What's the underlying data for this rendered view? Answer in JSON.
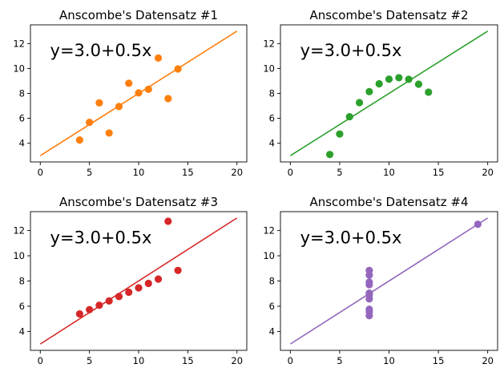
{
  "chart_data": [
    {
      "type": "scatter",
      "title": "Anscombe's Datensatz #1",
      "color": "#ff7f0e",
      "equation": "y=3.0+0.5x",
      "fit": {
        "intercept": 3.0,
        "slope": 0.5,
        "x_start": 0,
        "x_end": 20
      },
      "xlim": [
        -1.0,
        21.0
      ],
      "ylim": [
        2.5,
        13.5
      ],
      "xticks": [
        0,
        5,
        10,
        15,
        20
      ],
      "yticks": [
        4,
        6,
        8,
        10,
        12
      ],
      "x": [
        10,
        8,
        13,
        9,
        11,
        14,
        6,
        4,
        12,
        7,
        5
      ],
      "y": [
        8.04,
        6.95,
        7.58,
        8.81,
        8.33,
        9.96,
        7.24,
        4.26,
        10.84,
        4.82,
        5.68
      ]
    },
    {
      "type": "scatter",
      "title": "Anscombe's Datensatz #2",
      "color": "#2ca02c",
      "equation": "y=3.0+0.5x",
      "fit": {
        "intercept": 3.0,
        "slope": 0.5,
        "x_start": 0,
        "x_end": 20
      },
      "xlim": [
        -1.0,
        21.0
      ],
      "ylim": [
        2.5,
        13.5
      ],
      "xticks": [
        0,
        5,
        10,
        15,
        20
      ],
      "yticks": [
        4,
        6,
        8,
        10,
        12
      ],
      "x": [
        10,
        8,
        13,
        9,
        11,
        14,
        6,
        4,
        12,
        7,
        5
      ],
      "y": [
        9.14,
        8.14,
        8.74,
        8.77,
        9.26,
        8.1,
        6.13,
        3.1,
        9.13,
        7.26,
        4.74
      ]
    },
    {
      "type": "scatter",
      "title": "Anscombe's Datensatz #3",
      "color": "#d62728",
      "equation": "y=3.0+0.5x",
      "fit": {
        "intercept": 3.0,
        "slope": 0.5,
        "x_start": 0,
        "x_end": 20
      },
      "xlim": [
        -1.0,
        21.0
      ],
      "ylim": [
        2.5,
        13.5
      ],
      "xticks": [
        0,
        5,
        10,
        15,
        20
      ],
      "yticks": [
        4,
        6,
        8,
        10,
        12
      ],
      "x": [
        10,
        8,
        13,
        9,
        11,
        14,
        6,
        4,
        12,
        7,
        5
      ],
      "y": [
        7.46,
        6.77,
        12.74,
        7.11,
        7.81,
        8.84,
        6.08,
        5.39,
        8.15,
        6.42,
        5.73
      ]
    },
    {
      "type": "scatter",
      "title": "Anscombe's Datensatz #4",
      "color": "#9467bd",
      "equation": "y=3.0+0.5x",
      "fit": {
        "intercept": 3.0,
        "slope": 0.5,
        "x_start": 0,
        "x_end": 20
      },
      "xlim": [
        -1.0,
        21.0
      ],
      "ylim": [
        2.5,
        13.5
      ],
      "xticks": [
        0,
        5,
        10,
        15,
        20
      ],
      "yticks": [
        4,
        6,
        8,
        10,
        12
      ],
      "x": [
        8,
        8,
        8,
        8,
        8,
        8,
        8,
        19,
        8,
        8,
        8
      ],
      "y": [
        6.58,
        5.76,
        7.71,
        8.84,
        8.47,
        7.04,
        5.25,
        12.5,
        5.56,
        7.91,
        6.89
      ]
    }
  ]
}
